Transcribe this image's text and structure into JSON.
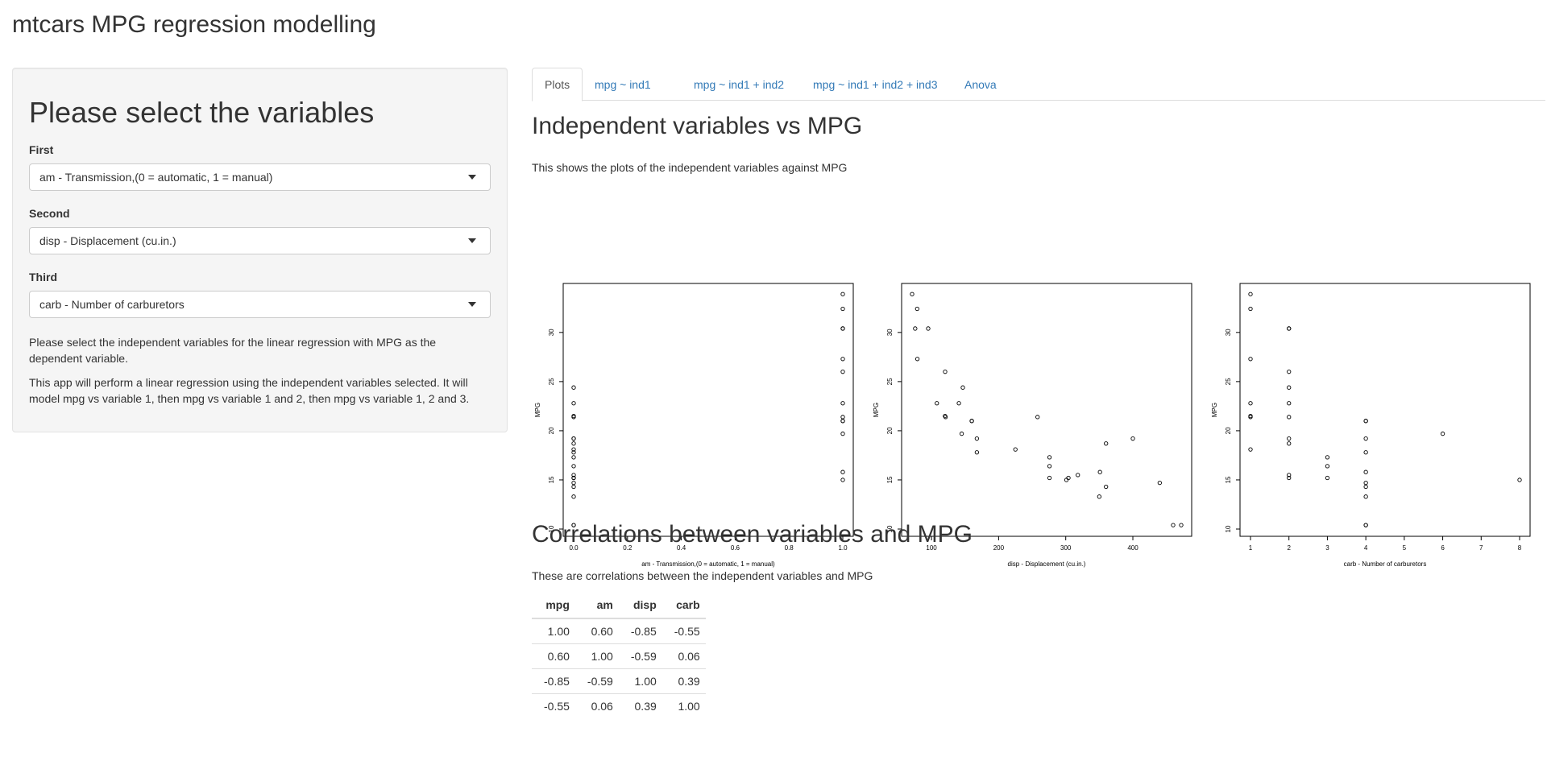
{
  "app": {
    "title": "mtcars MPG regression modelling"
  },
  "sidebar": {
    "heading": "Please select the variables",
    "fields": [
      {
        "label": "First",
        "value": "am - Transmission,(0 = automatic, 1 = manual)"
      },
      {
        "label": "Second",
        "value": "disp - Displacement (cu.in.)"
      },
      {
        "label": "Third",
        "value": "carb - Number of carburetors"
      }
    ],
    "help1": "Please select the independent variables for the linear regression with MPG as the dependent variable.",
    "help2": "This app will perform a linear regression using the independent variables selected. It will model mpg vs variable 1, then mpg vs variable 1 and 2, then mpg vs variable 1, 2 and 3."
  },
  "tabs": [
    {
      "label": "Plots",
      "active": true
    },
    {
      "label": "mpg ~ ind1",
      "active": false
    },
    {
      "label": "mpg ~ ind1 + ind2",
      "active": false
    },
    {
      "label": "mpg ~ ind1 + ind2 + ind3",
      "active": false
    },
    {
      "label": "Anova",
      "active": false
    }
  ],
  "plots_section": {
    "title": "Independent variables vs MPG",
    "description": "This shows the plots of the independent variables against MPG"
  },
  "chart_data": [
    {
      "type": "scatter",
      "xlabel": "am - Transmission,(0 = automatic, 1 = manual)",
      "ylabel": "MPG",
      "xlim": [
        0,
        1
      ],
      "ylim": [
        10,
        34
      ],
      "xticks": [
        "0.0",
        "0.2",
        "0.4",
        "0.6",
        "0.8",
        "1.0"
      ],
      "xtick_values": [
        0,
        0.2,
        0.4,
        0.6,
        0.8,
        1.0
      ],
      "yticks": [
        10,
        15,
        20,
        25,
        30
      ],
      "x": [
        1,
        1,
        1,
        0,
        0,
        0,
        0,
        0,
        0,
        0,
        0,
        0,
        0,
        0,
        0,
        0,
        0,
        1,
        1,
        1,
        0,
        0,
        0,
        0,
        0,
        1,
        1,
        1,
        1,
        1,
        1,
        1
      ],
      "y": [
        21,
        21,
        22.8,
        21.4,
        18.7,
        18.1,
        14.3,
        24.4,
        22.8,
        19.2,
        17.8,
        16.4,
        17.3,
        15.2,
        10.4,
        10.4,
        14.7,
        32.4,
        30.4,
        33.9,
        21.5,
        15.5,
        15.2,
        13.3,
        19.2,
        27.3,
        26,
        30.4,
        15.8,
        19.7,
        15,
        21.4
      ]
    },
    {
      "type": "scatter",
      "xlabel": "disp - Displacement (cu.in.)",
      "ylabel": "MPG",
      "xlim": [
        71.1,
        472
      ],
      "ylim": [
        10,
        34
      ],
      "xticks": [
        "100",
        "200",
        "300",
        "400"
      ],
      "xtick_values": [
        100,
        200,
        300,
        400
      ],
      "yticks": [
        10,
        15,
        20,
        25,
        30
      ],
      "x": [
        160,
        160,
        108,
        258,
        360,
        225,
        360,
        146.7,
        140.8,
        167.6,
        167.6,
        275.8,
        275.8,
        275.8,
        472,
        460,
        440,
        78.7,
        75.7,
        71.1,
        120.1,
        318,
        304,
        350,
        400,
        79,
        120.3,
        95.1,
        351,
        145,
        301,
        121
      ],
      "y": [
        21,
        21,
        22.8,
        21.4,
        18.7,
        18.1,
        14.3,
        24.4,
        22.8,
        19.2,
        17.8,
        16.4,
        17.3,
        15.2,
        10.4,
        10.4,
        14.7,
        32.4,
        30.4,
        33.9,
        21.5,
        15.5,
        15.2,
        13.3,
        19.2,
        27.3,
        26,
        30.4,
        15.8,
        19.7,
        15,
        21.4
      ]
    },
    {
      "type": "scatter",
      "xlabel": "carb - Number of carburetors",
      "ylabel": "MPG",
      "xlim": [
        1,
        8
      ],
      "ylim": [
        10,
        34
      ],
      "xticks": [
        "1",
        "2",
        "3",
        "4",
        "5",
        "6",
        "7",
        "8"
      ],
      "xtick_values": [
        1,
        2,
        3,
        4,
        5,
        6,
        7,
        8
      ],
      "yticks": [
        10,
        15,
        20,
        25,
        30
      ],
      "x": [
        4,
        4,
        1,
        1,
        2,
        1,
        4,
        2,
        2,
        4,
        4,
        3,
        3,
        3,
        4,
        4,
        4,
        1,
        2,
        1,
        1,
        2,
        2,
        4,
        2,
        1,
        2,
        2,
        4,
        6,
        8,
        2
      ],
      "y": [
        21,
        21,
        22.8,
        21.4,
        18.7,
        18.1,
        14.3,
        24.4,
        22.8,
        19.2,
        17.8,
        16.4,
        17.3,
        15.2,
        10.4,
        10.4,
        14.7,
        32.4,
        30.4,
        33.9,
        21.5,
        15.5,
        15.2,
        13.3,
        19.2,
        27.3,
        26,
        30.4,
        15.8,
        19.7,
        15,
        21.4
      ]
    },
    {
      "type": "table",
      "columns": [
        "mpg",
        "am",
        "disp",
        "carb"
      ],
      "rows": [
        [
          "1.00",
          "0.60",
          "-0.85",
          "-0.55"
        ],
        [
          "0.60",
          "1.00",
          "-0.59",
          "0.06"
        ],
        [
          "-0.85",
          "-0.59",
          "1.00",
          "0.39"
        ],
        [
          "-0.55",
          "0.06",
          "0.39",
          "1.00"
        ]
      ]
    }
  ],
  "correlations_section": {
    "title": "Correlations between variables and MPG",
    "description": "These are correlations between the independent variables and MPG"
  }
}
